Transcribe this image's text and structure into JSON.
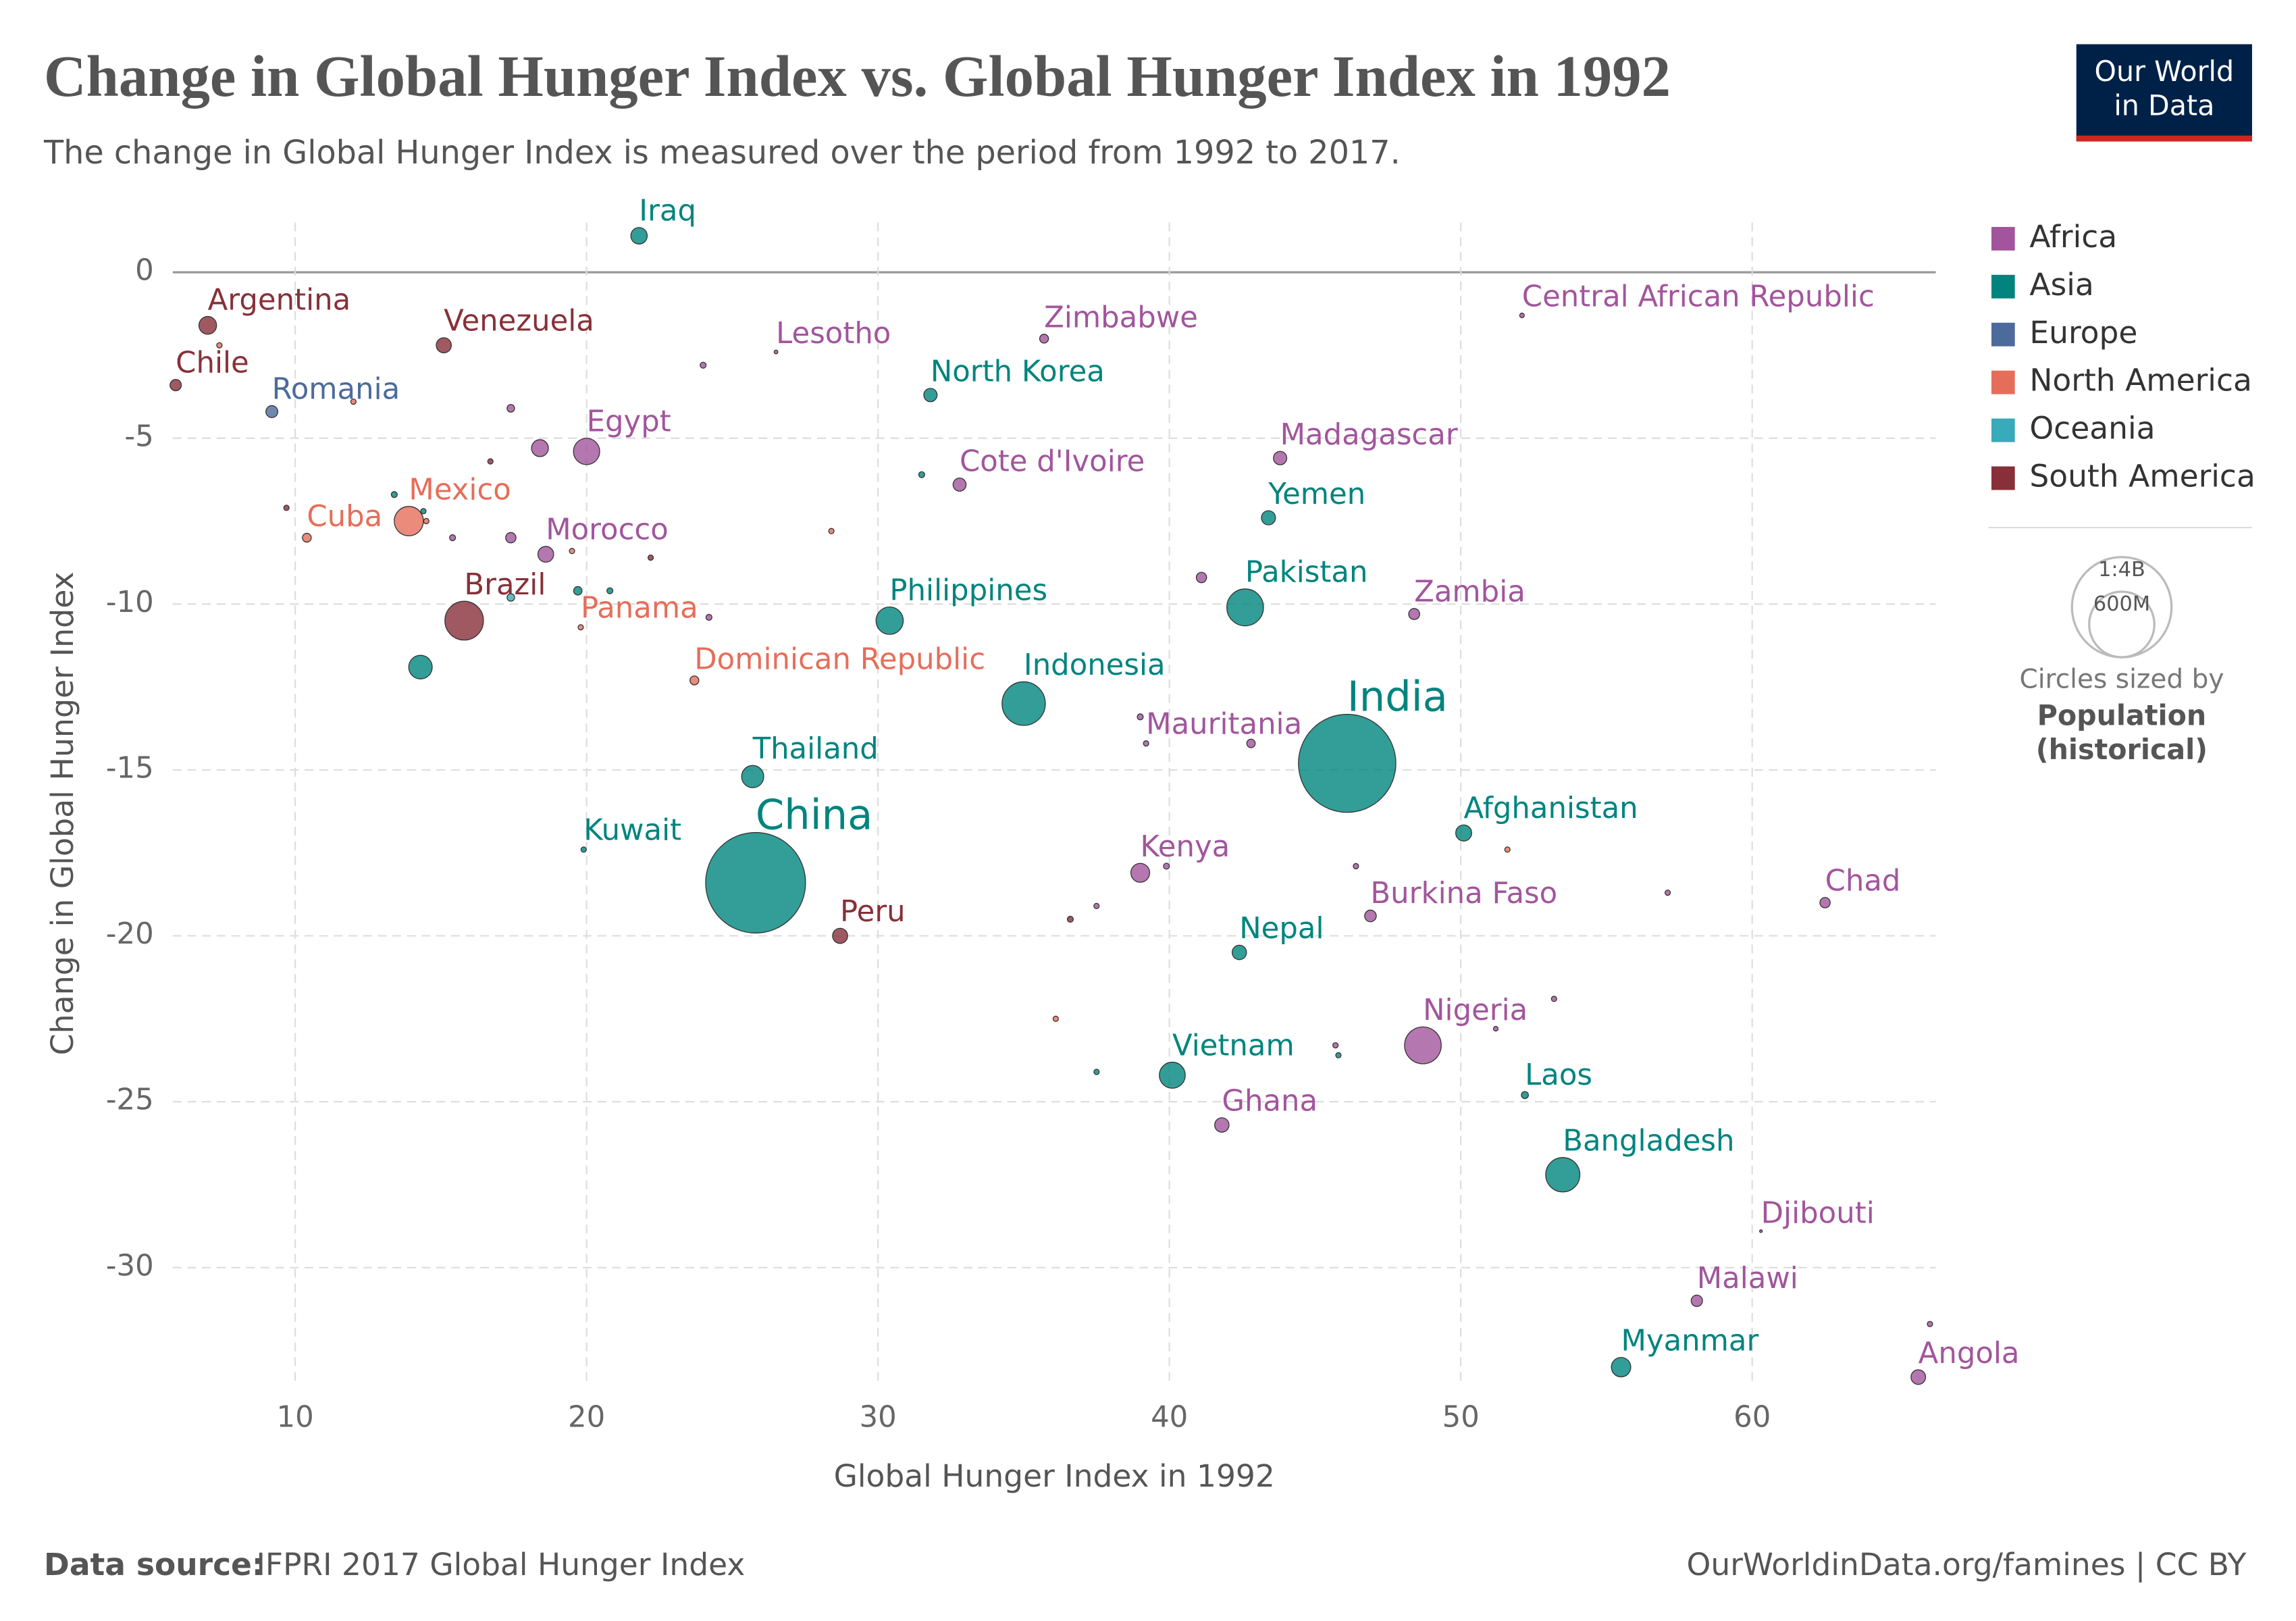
{
  "chart_data": {
    "type": "scatter",
    "title": "Change in Global Hunger Index vs. Global Hunger Index in 1992",
    "subtitle": "The change in Global Hunger Index is measured over the period from 1992 to 2017.",
    "x_label": "Global Hunger Index in 1992",
    "y_label": "Change in Global Hunger Index",
    "xlim": [
      5.8,
      66.3
    ],
    "ylim": [
      -33.5,
      1.5
    ],
    "xticks": [
      10,
      20,
      30,
      40,
      50,
      60
    ],
    "yticks": [
      0,
      -5,
      -10,
      -15,
      -20,
      -25,
      -30
    ],
    "grid": true,
    "series": [
      {
        "name": "Africa",
        "color": "#a2559c",
        "x": [
          26.5,
          35.7,
          52.1,
          20.0,
          43.8,
          32.8,
          18.6,
          48.4,
          39.2,
          39.0,
          46.9,
          62.5,
          48.7,
          41.8,
          60.3,
          58.1,
          65.7,
          17.4,
          18.4,
          17.4,
          15.4,
          24.0,
          24.2,
          41.1,
          39.0,
          42.8,
          39.9,
          37.5,
          46.4,
          57.1,
          45.7,
          53.2,
          51.2,
          66.1
        ],
        "values": [
          -2.4,
          -2.0,
          -1.3,
          -5.4,
          -5.6,
          -6.4,
          -8.5,
          -10.3,
          -14.2,
          -18.1,
          -19.4,
          -19.0,
          -23.3,
          -25.7,
          -28.9,
          -31.0,
          -33.3,
          -4.1,
          -5.3,
          -8.0,
          -8.0,
          -2.8,
          -10.4,
          -9.2,
          -13.4,
          -14.2,
          -17.9,
          -19.1,
          -17.9,
          -18.7,
          -23.3,
          -21.9,
          -22.8,
          -31.7
        ],
        "sizes": [
          2,
          11,
          3,
          97,
          25,
          24,
          35,
          17,
          4,
          50,
          19,
          15,
          190,
          29,
          1,
          18,
          30,
          8,
          40,
          15,
          5,
          5,
          5,
          15,
          5,
          10,
          5,
          4,
          4,
          4,
          4,
          4,
          3,
          4
        ],
        "labels": [
          "Lesotho",
          "Zimbabwe",
          "Central African Republic",
          "Egypt",
          "Madagascar",
          "Cote d'Ivoire",
          "Morocco",
          "Zambia",
          "Mauritania",
          "Kenya",
          "Burkina Faso",
          "Chad",
          "Nigeria",
          "Ghana",
          "Djibouti",
          "Malawi",
          "Angola",
          null,
          null,
          null,
          null,
          null,
          null,
          null,
          null,
          null,
          null,
          null,
          null,
          null,
          null,
          null,
          null,
          null
        ]
      },
      {
        "name": "Asia",
        "color": "#00847e",
        "x": [
          21.8,
          31.8,
          43.4,
          42.6,
          30.4,
          35.0,
          46.1,
          25.7,
          25.8,
          19.9,
          50.1,
          42.4,
          40.1,
          52.2,
          53.5,
          55.5,
          14.3,
          13.4,
          19.7,
          20.8,
          31.5,
          37.5,
          45.8,
          14.4
        ],
        "values": [
          1.1,
          -3.7,
          -7.4,
          -10.1,
          -10.5,
          -13.0,
          -14.8,
          -15.2,
          -18.4,
          -17.4,
          -16.9,
          -20.5,
          -24.2,
          -24.8,
          -27.2,
          -33.0,
          -11.9,
          -6.7,
          -9.6,
          -9.6,
          -6.1,
          -24.1,
          -23.6,
          -7.2
        ],
        "sizes": [
          38,
          25,
          28,
          190,
          105,
          265,
          1340,
          69,
          1410,
          4,
          36,
          29,
          95,
          7,
          165,
          53,
          78,
          5,
          10,
          5,
          5,
          4,
          4,
          4
        ],
        "labels": [
          "Iraq",
          "North Korea",
          "Yemen",
          "Pakistan",
          "Philippines",
          "Indonesia",
          "India",
          "Thailand",
          "China",
          "Kuwait",
          "Afghanistan",
          "Nepal",
          "Vietnam",
          "Laos",
          "Bangladesh",
          "Myanmar",
          null,
          null,
          null,
          null,
          null,
          null,
          null,
          null
        ]
      },
      {
        "name": "Europe",
        "color": "#4c6a9c",
        "x": [
          9.2
        ],
        "values": [
          -4.2
        ],
        "sizes": [
          20
        ],
        "labels": [
          "Romania"
        ]
      },
      {
        "name": "North America",
        "color": "#e56e5a",
        "x": [
          13.9,
          10.4,
          19.8,
          23.7,
          7.4,
          12.0,
          14.5,
          19.5,
          28.4,
          51.6,
          36.1
        ],
        "values": [
          -7.5,
          -8.0,
          -10.7,
          -12.3,
          -2.2,
          -3.9,
          -7.5,
          -8.4,
          -7.8,
          -17.4,
          -22.5
        ],
        "sizes": [
          120,
          11,
          4,
          11,
          4,
          4,
          4,
          4,
          4,
          4,
          4
        ],
        "labels": [
          "Mexico",
          "Cuba",
          "Panama",
          "Dominican Republic",
          null,
          null,
          null,
          null,
          null,
          null,
          null
        ]
      },
      {
        "name": "Oceania",
        "color": "#38aaba",
        "x": [
          17.4
        ],
        "values": [
          -9.8
        ],
        "sizes": [
          8
        ],
        "labels": [
          null
        ]
      },
      {
        "name": "South America",
        "color": "#883039",
        "x": [
          7.0,
          5.9,
          15.1,
          15.8,
          28.7,
          9.7,
          16.7,
          22.2,
          36.6
        ],
        "values": [
          -1.6,
          -3.4,
          -2.2,
          -10.5,
          -20.0,
          -7.1,
          -5.7,
          -8.6,
          -19.5
        ],
        "sizes": [
          44,
          18,
          32,
          210,
          32,
          4,
          4,
          4,
          5
        ],
        "labels": [
          "Argentina",
          "Chile",
          "Venezuela",
          "Brazil",
          "Peru",
          null,
          null,
          null,
          null
        ]
      }
    ],
    "size_legend": {
      "values": [
        {
          "value": 1400,
          "label": "1:4B"
        },
        {
          "value": 600,
          "label": "600M"
        }
      ],
      "caption": "Circles sized by",
      "variable": "Population",
      "variable_note": "(historical)"
    },
    "source_label": "Data source:",
    "source": "IFPRI 2017 Global Hunger Index",
    "url": "OurWorldinData.org/famines | CC BY",
    "logo": [
      "Our World",
      "in Data"
    ]
  }
}
